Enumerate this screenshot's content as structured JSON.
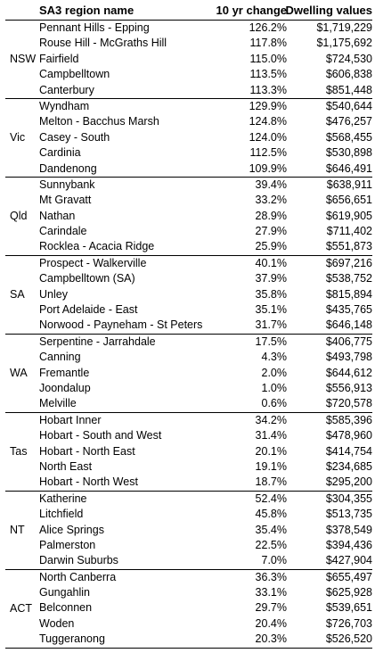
{
  "chart_data": {
    "type": "table",
    "columns": [
      "SA3 region name",
      "10 yr change",
      "Dwelling values"
    ],
    "groups": [
      {
        "state": "NSW",
        "rows": [
          {
            "name": "Pennant Hills - Epping",
            "change": "126.2%",
            "value": "$1,719,229"
          },
          {
            "name": "Rouse Hill - McGraths Hill",
            "change": "117.8%",
            "value": "$1,175,692"
          },
          {
            "name": "Fairfield",
            "change": "115.0%",
            "value": "$724,530"
          },
          {
            "name": "Campbelltown",
            "change": "113.5%",
            "value": "$606,838"
          },
          {
            "name": "Canterbury",
            "change": "113.3%",
            "value": "$851,448"
          }
        ]
      },
      {
        "state": "Vic",
        "rows": [
          {
            "name": "Wyndham",
            "change": "129.9%",
            "value": "$540,644"
          },
          {
            "name": "Melton - Bacchus Marsh",
            "change": "124.8%",
            "value": "$476,257"
          },
          {
            "name": "Casey - South",
            "change": "124.0%",
            "value": "$568,455"
          },
          {
            "name": "Cardinia",
            "change": "112.5%",
            "value": "$530,898"
          },
          {
            "name": "Dandenong",
            "change": "109.9%",
            "value": "$646,491"
          }
        ]
      },
      {
        "state": "Qld",
        "rows": [
          {
            "name": "Sunnybank",
            "change": "39.4%",
            "value": "$638,911"
          },
          {
            "name": "Mt Gravatt",
            "change": "33.2%",
            "value": "$656,651"
          },
          {
            "name": "Nathan",
            "change": "28.9%",
            "value": "$619,905"
          },
          {
            "name": "Carindale",
            "change": "27.9%",
            "value": "$711,402"
          },
          {
            "name": "Rocklea - Acacia Ridge",
            "change": "25.9%",
            "value": "$551,873"
          }
        ]
      },
      {
        "state": "SA",
        "rows": [
          {
            "name": "Prospect - Walkerville",
            "change": "40.1%",
            "value": "$697,216"
          },
          {
            "name": "Campbelltown (SA)",
            "change": "37.9%",
            "value": "$538,752"
          },
          {
            "name": "Unley",
            "change": "35.8%",
            "value": "$815,894"
          },
          {
            "name": "Port Adelaide - East",
            "change": "35.1%",
            "value": "$435,765"
          },
          {
            "name": "Norwood - Payneham - St Peters",
            "change": "31.7%",
            "value": "$646,148"
          }
        ]
      },
      {
        "state": "WA",
        "rows": [
          {
            "name": "Serpentine - Jarrahdale",
            "change": "17.5%",
            "value": "$406,775"
          },
          {
            "name": "Canning",
            "change": "4.3%",
            "value": "$493,798"
          },
          {
            "name": "Fremantle",
            "change": "2.0%",
            "value": "$644,612"
          },
          {
            "name": "Joondalup",
            "change": "1.0%",
            "value": "$556,913"
          },
          {
            "name": "Melville",
            "change": "0.6%",
            "value": "$720,578"
          }
        ]
      },
      {
        "state": "Tas",
        "rows": [
          {
            "name": "Hobart Inner",
            "change": "34.2%",
            "value": "$585,396"
          },
          {
            "name": "Hobart - South and West",
            "change": "31.4%",
            "value": "$478,960"
          },
          {
            "name": "Hobart - North East",
            "change": "20.1%",
            "value": "$414,754"
          },
          {
            "name": "North East",
            "change": "19.1%",
            "value": "$234,685"
          },
          {
            "name": "Hobart - North West",
            "change": "18.7%",
            "value": "$295,200"
          }
        ]
      },
      {
        "state": "NT",
        "rows": [
          {
            "name": "Katherine",
            "change": "52.4%",
            "value": "$304,355"
          },
          {
            "name": "Litchfield",
            "change": "45.8%",
            "value": "$513,735"
          },
          {
            "name": "Alice Springs",
            "change": "35.4%",
            "value": "$378,549"
          },
          {
            "name": "Palmerston",
            "change": "22.5%",
            "value": "$394,436"
          },
          {
            "name": "Darwin Suburbs",
            "change": "7.0%",
            "value": "$427,904"
          }
        ]
      },
      {
        "state": "ACT",
        "rows": [
          {
            "name": "North Canberra",
            "change": "36.3%",
            "value": "$655,497"
          },
          {
            "name": "Gungahlin",
            "change": "33.1%",
            "value": "$625,928"
          },
          {
            "name": "Belconnen",
            "change": "29.7%",
            "value": "$539,651"
          },
          {
            "name": "Woden",
            "change": "20.4%",
            "value": "$726,703"
          },
          {
            "name": "Tuggeranong",
            "change": "20.3%",
            "value": "$526,520"
          }
        ]
      }
    ]
  }
}
